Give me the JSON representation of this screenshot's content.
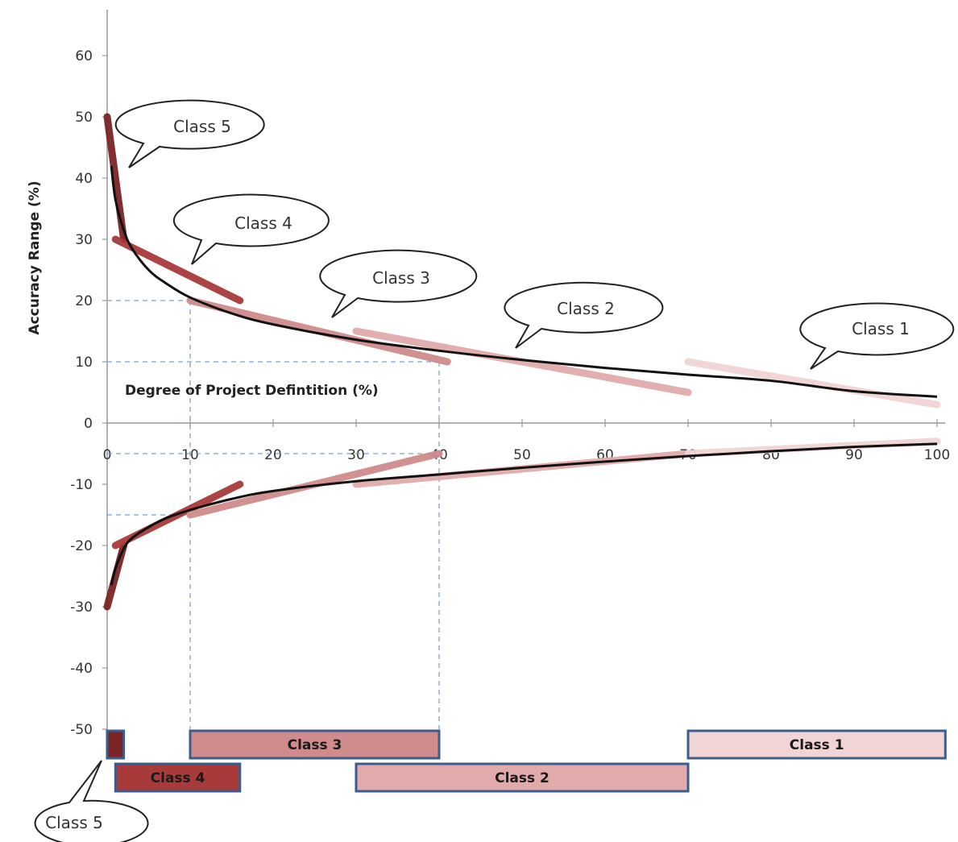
{
  "chart_data": {
    "type": "line",
    "ylabel": "Accuracy Range (%)",
    "xlabel": "Degree of Project Defintition (%)",
    "x_ticks": [
      0,
      10,
      20,
      30,
      40,
      50,
      60,
      70,
      80,
      90,
      100
    ],
    "y_ticks": [
      60,
      50,
      40,
      30,
      20,
      10,
      0,
      -10,
      -20,
      -30,
      -40,
      -50
    ],
    "xlim": [
      0,
      100
    ],
    "ylim": [
      -55,
      65
    ],
    "grid": false,
    "colors": {
      "class5": "#7b2425",
      "class4": "#a83a3a",
      "class3": "#d08c8c",
      "class2": "#e2aaaa",
      "class1": "#f1d4d4",
      "fit": "#111111",
      "dashed": "#7fa3c3",
      "band_border": "#3b5c8c"
    },
    "fit_upper": {
      "x": [
        0.5,
        1,
        2,
        3,
        5,
        7,
        10,
        15,
        20,
        30,
        40,
        50,
        60,
        70,
        80,
        90,
        100
      ],
      "y": [
        42,
        36.5,
        31.5,
        28.5,
        25,
        22.9,
        20.5,
        17.9,
        16.1,
        13.6,
        11.8,
        10.3,
        9,
        7.9,
        6.9,
        5.2,
        4.3
      ]
    },
    "fit_lower": {
      "x": [
        0.5,
        1,
        2,
        3,
        5,
        7,
        10,
        15,
        20,
        30,
        40,
        50,
        60,
        70,
        80,
        90,
        100
      ],
      "y": [
        -26.5,
        -23.8,
        -20.5,
        -18.8,
        -17,
        -15.6,
        -14.2,
        -12.4,
        -11.1,
        -9.5,
        -8.4,
        -7.3,
        -6.3,
        -5.4,
        -4.6,
        -3.9,
        -3.4
      ]
    },
    "series": [
      {
        "name": "Class 5",
        "color_key": "class5",
        "upper": [
          [
            0,
            50
          ],
          [
            2,
            30
          ]
        ],
        "lower": [
          [
            0,
            -30
          ],
          [
            2,
            -20
          ]
        ]
      },
      {
        "name": "Class 4",
        "color_key": "class4",
        "upper": [
          [
            1,
            30
          ],
          [
            16,
            20
          ]
        ],
        "lower": [
          [
            1,
            -20
          ],
          [
            16,
            -10
          ]
        ]
      },
      {
        "name": "Class 3",
        "color_key": "class3",
        "upper": [
          [
            10,
            20
          ],
          [
            41,
            10
          ]
        ],
        "lower": [
          [
            10,
            -15
          ],
          [
            40,
            -5
          ]
        ]
      },
      {
        "name": "Class 2",
        "color_key": "class2",
        "upper": [
          [
            30,
            15
          ],
          [
            70,
            5
          ]
        ],
        "lower": [
          [
            30,
            -10
          ],
          [
            70,
            -5
          ]
        ]
      },
      {
        "name": "Class 1",
        "color_key": "class1",
        "upper": [
          [
            70,
            10
          ],
          [
            100,
            3
          ]
        ],
        "lower": [
          [
            70,
            -5
          ],
          [
            100,
            -3
          ]
        ]
      }
    ],
    "reference_lines": {
      "horizontal": [
        {
          "y": 20,
          "x_from": 0,
          "x_to": 10
        },
        {
          "y": 10,
          "x_from": 0,
          "x_to": 40
        },
        {
          "y": -5,
          "x_from": 0,
          "x_to": 40
        },
        {
          "y": -15,
          "x_from": 0,
          "x_to": 10
        }
      ],
      "vertical": [
        {
          "x": 10,
          "y_from": 20,
          "y_to": -50
        },
        {
          "x": 40,
          "y_from": 10,
          "y_to": -50
        }
      ]
    },
    "bands": [
      {
        "label": "Class 3",
        "x_from": 10,
        "x_to": 40,
        "row": 1,
        "color_key": "class3"
      },
      {
        "label": "Class 1",
        "x_from": 70,
        "x_to": 101,
        "row": 1,
        "color_key": "class1"
      },
      {
        "label": "Class 4",
        "x_from": 1,
        "x_to": 16,
        "row": 2,
        "color_key": "class4"
      },
      {
        "label": "Class 2",
        "x_from": 30,
        "x_to": 70,
        "row": 2,
        "color_key": "class2"
      },
      {
        "label": "",
        "x_from": 0,
        "x_to": 2,
        "row": 1,
        "color_key": "class5"
      }
    ],
    "callouts": [
      {
        "label": "Class 5"
      },
      {
        "label": "Class 4"
      },
      {
        "label": "Class 3"
      },
      {
        "label": "Class 2"
      },
      {
        "label": "Class 1"
      },
      {
        "label": "Class 5"
      }
    ]
  }
}
